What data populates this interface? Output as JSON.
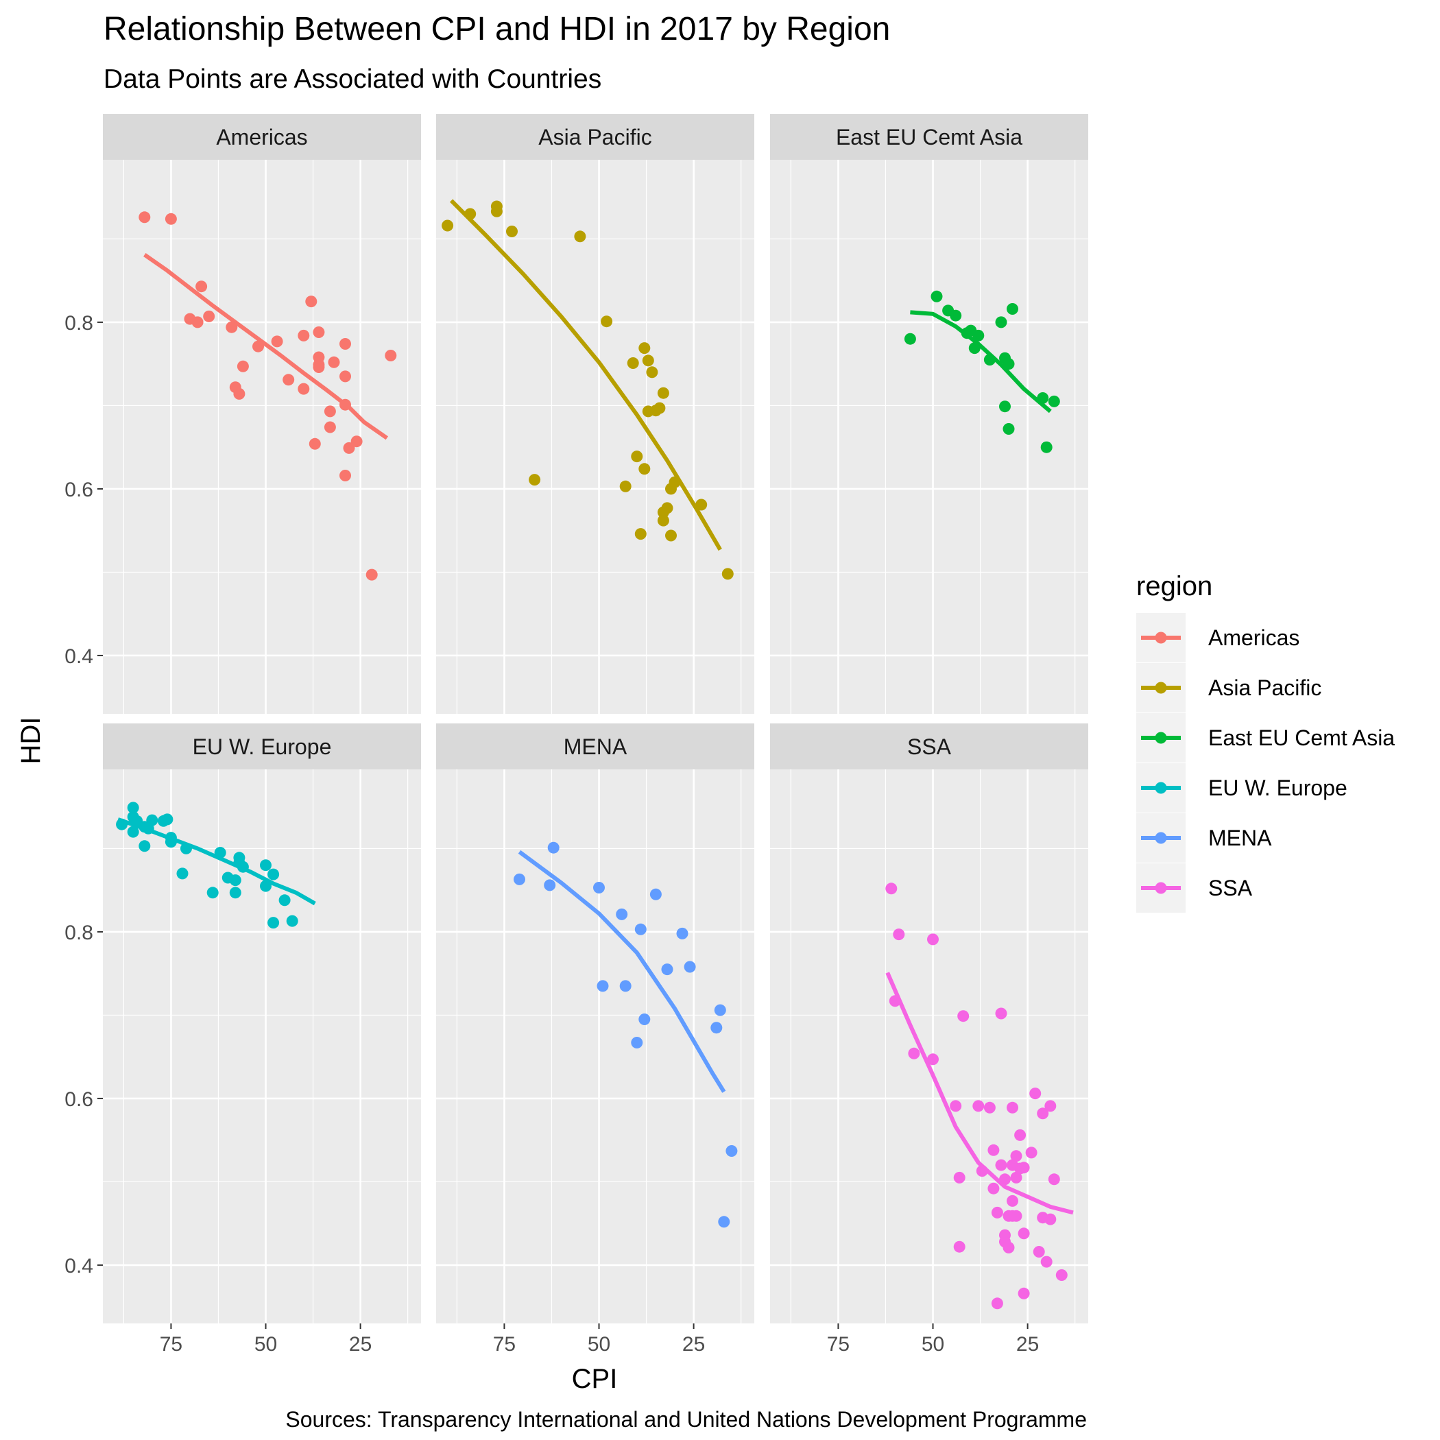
{
  "chart_data": {
    "type": "scatter",
    "title": "Relationship Between CPI and HDI in 2017 by Region",
    "subtitle": "Data Points are Associated with Countries",
    "xlabel": "CPI",
    "ylabel": "HDI",
    "caption": "Sources: Transparency International and United Nations Development Programme",
    "x_reversed": true,
    "xlim": [
      93,
      9
    ],
    "ylim": [
      0.33,
      0.995
    ],
    "x_ticks": [
      75,
      50,
      25
    ],
    "y_ticks": [
      0.4,
      0.6,
      0.8
    ],
    "grid": true,
    "legend": {
      "title": "region",
      "position": "right"
    },
    "panels": [
      {
        "name": "Americas",
        "color": "#F8766D",
        "fit": [
          [
            82,
            0.881
          ],
          [
            76,
            0.862
          ],
          [
            70,
            0.841
          ],
          [
            64,
            0.82
          ],
          [
            58,
            0.8
          ],
          [
            52,
            0.78
          ],
          [
            46,
            0.76
          ],
          [
            40,
            0.739
          ],
          [
            34,
            0.719
          ],
          [
            28,
            0.698
          ],
          [
            24,
            0.68
          ],
          [
            18,
            0.661
          ]
        ],
        "points": [
          [
            82,
            0.926
          ],
          [
            75,
            0.924
          ],
          [
            67,
            0.843
          ],
          [
            70,
            0.804
          ],
          [
            68,
            0.8
          ],
          [
            65,
            0.807
          ],
          [
            59,
            0.794
          ],
          [
            56,
            0.747
          ],
          [
            52,
            0.771
          ],
          [
            47,
            0.777
          ],
          [
            58,
            0.722
          ],
          [
            57,
            0.714
          ],
          [
            44,
            0.731
          ],
          [
            40,
            0.784
          ],
          [
            40,
            0.72
          ],
          [
            38,
            0.825
          ],
          [
            36,
            0.788
          ],
          [
            36,
            0.758
          ],
          [
            36,
            0.749
          ],
          [
            36,
            0.746
          ],
          [
            33,
            0.693
          ],
          [
            33,
            0.674
          ],
          [
            32,
            0.752
          ],
          [
            29,
            0.774
          ],
          [
            29,
            0.735
          ],
          [
            29,
            0.701
          ],
          [
            28,
            0.649
          ],
          [
            26,
            0.657
          ],
          [
            29,
            0.616
          ],
          [
            37,
            0.654
          ],
          [
            22,
            0.497
          ],
          [
            17,
            0.76
          ]
        ]
      },
      {
        "name": "Asia Pacific",
        "color": "#B79F00",
        "fit": [
          [
            89,
            0.946
          ],
          [
            80,
            0.905
          ],
          [
            70,
            0.858
          ],
          [
            60,
            0.807
          ],
          [
            50,
            0.752
          ],
          [
            40,
            0.689
          ],
          [
            32,
            0.634
          ],
          [
            24,
            0.574
          ],
          [
            18,
            0.527
          ]
        ],
        "points": [
          [
            90,
            0.916
          ],
          [
            84,
            0.93
          ],
          [
            77,
            0.939
          ],
          [
            77,
            0.933
          ],
          [
            73,
            0.909
          ],
          [
            55,
            0.903
          ],
          [
            48,
            0.801
          ],
          [
            67,
            0.611
          ],
          [
            38,
            0.769
          ],
          [
            37,
            0.754
          ],
          [
            36,
            0.74
          ],
          [
            41,
            0.751
          ],
          [
            33,
            0.715
          ],
          [
            34,
            0.697
          ],
          [
            35,
            0.694
          ],
          [
            37,
            0.693
          ],
          [
            40,
            0.639
          ],
          [
            38,
            0.624
          ],
          [
            43,
            0.603
          ],
          [
            39,
            0.546
          ],
          [
            30,
            0.608
          ],
          [
            31,
            0.6
          ],
          [
            32,
            0.577
          ],
          [
            33,
            0.572
          ],
          [
            33,
            0.562
          ],
          [
            31,
            0.544
          ],
          [
            23,
            0.581
          ],
          [
            16,
            0.498
          ]
        ]
      },
      {
        "name": "East EU Cemt Asia",
        "color": "#00BA38",
        "fit": [
          [
            56,
            0.812
          ],
          [
            50,
            0.81
          ],
          [
            44,
            0.795
          ],
          [
            38,
            0.774
          ],
          [
            32,
            0.749
          ],
          [
            26,
            0.72
          ],
          [
            19,
            0.693
          ]
        ],
        "points": [
          [
            56,
            0.78
          ],
          [
            49,
            0.831
          ],
          [
            46,
            0.814
          ],
          [
            44,
            0.808
          ],
          [
            41,
            0.787
          ],
          [
            40,
            0.79
          ],
          [
            38,
            0.784
          ],
          [
            39,
            0.769
          ],
          [
            35,
            0.755
          ],
          [
            31,
            0.757
          ],
          [
            32,
            0.8
          ],
          [
            29,
            0.816
          ],
          [
            30,
            0.75
          ],
          [
            31,
            0.699
          ],
          [
            30,
            0.672
          ],
          [
            21,
            0.709
          ],
          [
            18,
            0.705
          ],
          [
            20,
            0.65
          ]
        ]
      },
      {
        "name": "EU W. Europe",
        "color": "#00BFC4",
        "fit": [
          [
            89,
            0.935
          ],
          [
            82,
            0.924
          ],
          [
            75,
            0.912
          ],
          [
            68,
            0.9
          ],
          [
            61,
            0.886
          ],
          [
            54,
            0.872
          ],
          [
            48,
            0.858
          ],
          [
            42,
            0.847
          ],
          [
            37,
            0.834
          ]
        ],
        "points": [
          [
            88,
            0.929
          ],
          [
            85,
            0.938
          ],
          [
            85,
            0.949
          ],
          [
            84,
            0.933
          ],
          [
            85,
            0.92
          ],
          [
            82,
            0.926
          ],
          [
            80,
            0.934
          ],
          [
            81,
            0.924
          ],
          [
            82,
            0.903
          ],
          [
            77,
            0.933
          ],
          [
            76,
            0.935
          ],
          [
            75,
            0.913
          ],
          [
            75,
            0.908
          ],
          [
            71,
            0.9
          ],
          [
            72,
            0.87
          ],
          [
            62,
            0.895
          ],
          [
            60,
            0.865
          ],
          [
            58,
            0.862
          ],
          [
            57,
            0.889
          ],
          [
            57,
            0.883
          ],
          [
            56,
            0.878
          ],
          [
            58,
            0.847
          ],
          [
            64,
            0.847
          ],
          [
            50,
            0.88
          ],
          [
            48,
            0.869
          ],
          [
            50,
            0.855
          ],
          [
            45,
            0.838
          ],
          [
            48,
            0.811
          ],
          [
            43,
            0.813
          ]
        ]
      },
      {
        "name": "MENA",
        "color": "#619CFF",
        "fit": [
          [
            71,
            0.896
          ],
          [
            60,
            0.859
          ],
          [
            50,
            0.822
          ],
          [
            40,
            0.775
          ],
          [
            30,
            0.708
          ],
          [
            20,
            0.63
          ],
          [
            17,
            0.608
          ]
        ],
        "points": [
          [
            71,
            0.863
          ],
          [
            62,
            0.901
          ],
          [
            63,
            0.856
          ],
          [
            50,
            0.853
          ],
          [
            44,
            0.821
          ],
          [
            39,
            0.803
          ],
          [
            35,
            0.845
          ],
          [
            49,
            0.735
          ],
          [
            43,
            0.735
          ],
          [
            40,
            0.667
          ],
          [
            32,
            0.755
          ],
          [
            26,
            0.758
          ],
          [
            38,
            0.695
          ],
          [
            28,
            0.798
          ],
          [
            18,
            0.706
          ],
          [
            19,
            0.685
          ],
          [
            15,
            0.537
          ],
          [
            17,
            0.452
          ]
        ]
      },
      {
        "name": "SSA",
        "color": "#F564E3",
        "fit": [
          [
            62,
            0.751
          ],
          [
            56,
            0.688
          ],
          [
            50,
            0.628
          ],
          [
            44,
            0.566
          ],
          [
            38,
            0.523
          ],
          [
            31,
            0.494
          ],
          [
            25,
            0.482
          ],
          [
            19,
            0.47
          ],
          [
            13,
            0.463
          ]
        ],
        "points": [
          [
            61,
            0.852
          ],
          [
            59,
            0.797
          ],
          [
            50,
            0.791
          ],
          [
            60,
            0.717
          ],
          [
            55,
            0.654
          ],
          [
            50,
            0.647
          ],
          [
            44,
            0.591
          ],
          [
            43,
            0.505
          ],
          [
            43,
            0.422
          ],
          [
            42,
            0.699
          ],
          [
            38,
            0.591
          ],
          [
            37,
            0.513
          ],
          [
            35,
            0.589
          ],
          [
            34,
            0.538
          ],
          [
            34,
            0.492
          ],
          [
            33,
            0.463
          ],
          [
            32,
            0.52
          ],
          [
            32,
            0.702
          ],
          [
            29,
            0.589
          ],
          [
            29,
            0.52
          ],
          [
            27,
            0.516
          ],
          [
            26,
            0.517
          ],
          [
            28,
            0.531
          ],
          [
            28,
            0.505
          ],
          [
            27,
            0.556
          ],
          [
            31,
            0.503
          ],
          [
            29,
            0.477
          ],
          [
            29,
            0.459
          ],
          [
            28,
            0.459
          ],
          [
            30,
            0.459
          ],
          [
            31,
            0.436
          ],
          [
            31,
            0.428
          ],
          [
            30,
            0.421
          ],
          [
            26,
            0.438
          ],
          [
            24,
            0.535
          ],
          [
            23,
            0.606
          ],
          [
            21,
            0.582
          ],
          [
            19,
            0.591
          ],
          [
            18,
            0.503
          ],
          [
            21,
            0.457
          ],
          [
            19,
            0.455
          ],
          [
            22,
            0.416
          ],
          [
            20,
            0.404
          ],
          [
            26,
            0.366
          ],
          [
            33,
            0.354
          ],
          [
            16,
            0.388
          ]
        ]
      }
    ]
  }
}
